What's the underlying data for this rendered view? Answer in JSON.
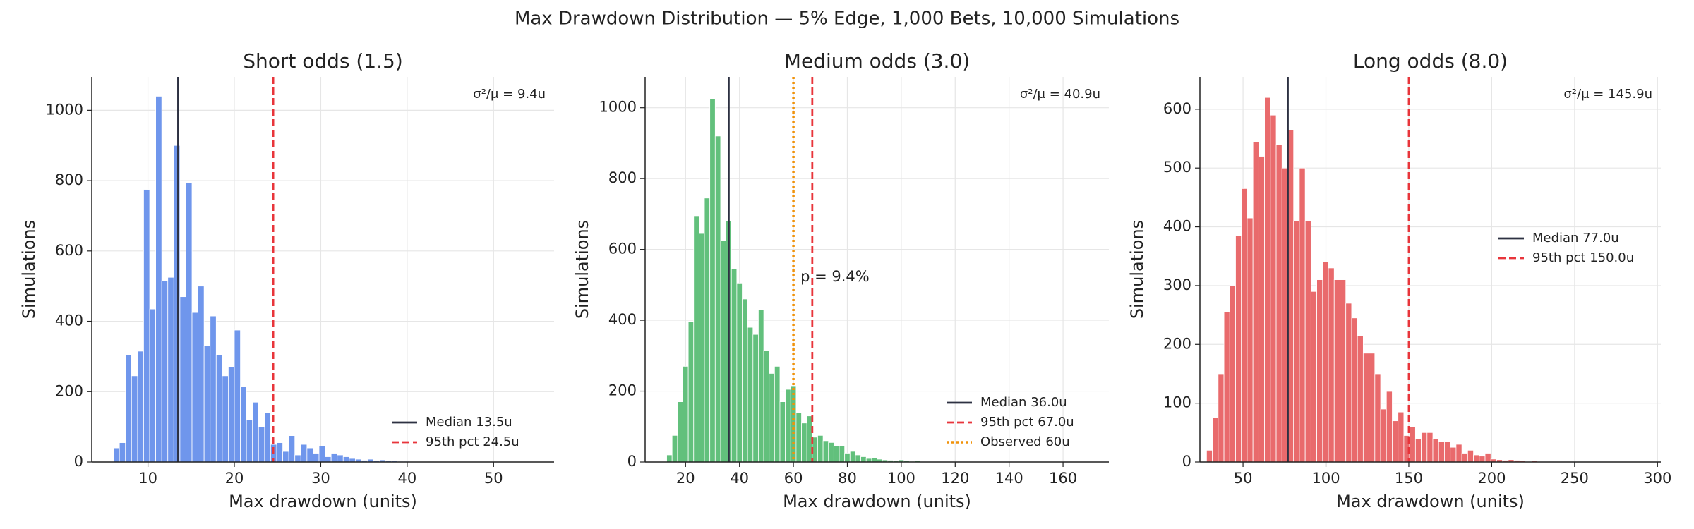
{
  "title": "Max Drawdown Distribution — 5% Edge, 1,000 Bets, 10,000 Simulations",
  "chart_data": [
    {
      "type": "histogram",
      "title": "Short odds (1.5)",
      "xlabel": "Max drawdown (units)",
      "ylabel": "Simulations",
      "color": "#6f96ec",
      "bins": [
        6,
        6.7,
        7.4,
        8.1,
        8.8,
        9.5,
        10.2,
        10.9,
        11.6,
        12.3,
        13,
        13.7,
        14.4,
        15.1,
        15.8,
        16.5,
        17.2,
        17.9,
        18.6,
        19.3,
        20,
        20.7,
        21.4,
        22.1,
        22.8,
        23.5,
        24.2,
        24.9,
        25.6,
        26.3,
        27,
        27.7,
        28.4,
        29.1,
        29.8,
        30.5,
        31.2,
        31.9,
        32.6,
        33.3,
        34,
        34.7,
        35.4,
        36.1,
        36.8,
        37.5,
        38.2,
        38.9,
        39.6,
        40.3,
        41,
        41.7,
        42.4,
        43.1,
        43.8,
        44.5,
        45.2
      ],
      "values": [
        40,
        55,
        305,
        245,
        315,
        775,
        435,
        1040,
        515,
        525,
        900,
        470,
        795,
        425,
        500,
        330,
        415,
        305,
        245,
        270,
        375,
        215,
        120,
        170,
        100,
        140,
        50,
        55,
        30,
        75,
        20,
        50,
        40,
        25,
        45,
        15,
        25,
        20,
        15,
        10,
        8,
        5,
        8,
        4,
        6,
        3,
        3,
        2,
        2,
        1,
        1,
        1,
        0,
        1,
        0,
        1
      ],
      "xlim": [
        3.5,
        57
      ],
      "ylim": [
        0,
        1095
      ],
      "xticks": [
        10,
        20,
        30,
        40,
        50
      ],
      "yticks": [
        0,
        200,
        400,
        600,
        800,
        1000
      ],
      "grid": true,
      "vlines": [
        {
          "name": "Median 13.5u",
          "value": 13.5,
          "color": "#2d3142",
          "style": "solid"
        },
        {
          "name": "95th pct 24.5u",
          "value": 24.5,
          "color": "#e8353b",
          "style": "dashed"
        }
      ],
      "legend": "lower right",
      "annotations": [
        {
          "text": "σ²/μ = 9.4u",
          "color": "#7a7f8c"
        }
      ]
    },
    {
      "type": "histogram",
      "title": "Medium odds (3.0)",
      "xlabel": "Max drawdown (units)",
      "ylabel": "Simulations",
      "color": "#62c07c",
      "bins": [
        13,
        15,
        17,
        19,
        21,
        23,
        25,
        27,
        29,
        31,
        33,
        35,
        37,
        39,
        41,
        43,
        45,
        47,
        49,
        51,
        53,
        55,
        57,
        59,
        61,
        63,
        65,
        67,
        69,
        71,
        73,
        75,
        77,
        79,
        81,
        83,
        85,
        87,
        89,
        91,
        93,
        95,
        97,
        99,
        101,
        103,
        105,
        107,
        109,
        111,
        113
      ],
      "values": [
        20,
        75,
        170,
        270,
        395,
        695,
        645,
        745,
        1025,
        920,
        625,
        680,
        545,
        505,
        460,
        380,
        360,
        430,
        315,
        250,
        270,
        170,
        205,
        215,
        140,
        110,
        130,
        70,
        75,
        60,
        55,
        45,
        45,
        25,
        30,
        20,
        15,
        10,
        12,
        8,
        6,
        5,
        4,
        6,
        3,
        2,
        3,
        1,
        1,
        1
      ],
      "xlim": [
        5,
        177
      ],
      "ylim": [
        0,
        1087
      ],
      "xticks": [
        20,
        40,
        60,
        80,
        100,
        120,
        140,
        160
      ],
      "yticks": [
        0,
        200,
        400,
        600,
        800,
        1000
      ],
      "grid": true,
      "vlines": [
        {
          "name": "Median 36.0u",
          "value": 36.0,
          "color": "#2d3142",
          "style": "solid"
        },
        {
          "name": "95th pct 67.0u",
          "value": 67.0,
          "color": "#e8353b",
          "style": "dashed"
        },
        {
          "name": "Observed 60u",
          "value": 60,
          "color": "#f0920a",
          "style": "dotted"
        }
      ],
      "legend": "lower right",
      "annotations": [
        {
          "text": "σ²/μ = 40.9u",
          "color": "#7a7f8c"
        },
        {
          "text": "p = 9.4%",
          "color": "#f0920a"
        }
      ]
    },
    {
      "type": "histogram",
      "title": "Long odds (8.0)",
      "xlabel": "Max drawdown (units)",
      "ylabel": "Simulations",
      "color": "#e96a6c",
      "bins": [
        28,
        31.5,
        35,
        38.5,
        42,
        45.5,
        49,
        52.5,
        56,
        59.5,
        63,
        66.5,
        70,
        73.5,
        77,
        80.5,
        84,
        87.5,
        91,
        94.5,
        98,
        101.5,
        105,
        108.5,
        112,
        115.5,
        119,
        122.5,
        126,
        129.5,
        133,
        136.5,
        140,
        143.5,
        147,
        150.5,
        154,
        157.5,
        161,
        164.5,
        168,
        171.5,
        175,
        178.5,
        182,
        185.5,
        189,
        192.5,
        196,
        199.5,
        203,
        206.5,
        210,
        213.5,
        217,
        220.5,
        224,
        227.5,
        231,
        234.5,
        238,
        241.5
      ],
      "values": [
        20,
        75,
        150,
        255,
        300,
        385,
        465,
        415,
        545,
        520,
        620,
        590,
        540,
        500,
        565,
        410,
        500,
        410,
        290,
        310,
        340,
        330,
        310,
        310,
        270,
        245,
        215,
        185,
        185,
        150,
        90,
        120,
        70,
        85,
        45,
        60,
        40,
        50,
        50,
        40,
        35,
        35,
        25,
        30,
        15,
        20,
        12,
        10,
        15,
        5,
        4,
        3,
        4,
        3,
        2,
        1,
        2,
        1,
        1,
        0,
        1
      ],
      "xlim": [
        24,
        302
      ],
      "ylim": [
        0,
        655
      ],
      "xticks": [
        50,
        100,
        150,
        200,
        250,
        300
      ],
      "yticks": [
        0,
        100,
        200,
        300,
        400,
        500,
        600
      ],
      "grid": true,
      "vlines": [
        {
          "name": "Median 77.0u",
          "value": 77.0,
          "color": "#2d3142",
          "style": "solid"
        },
        {
          "name": "95th pct 150.0u",
          "value": 150.0,
          "color": "#e8353b",
          "style": "dashed"
        }
      ],
      "legend": "center right",
      "annotations": [
        {
          "text": "σ²/μ = 145.9u",
          "color": "#7a7f8c"
        }
      ]
    }
  ]
}
